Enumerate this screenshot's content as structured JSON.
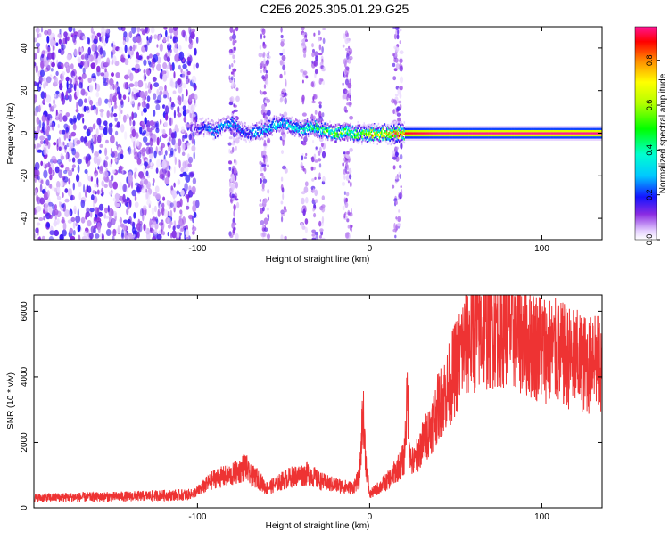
{
  "page_title": "C2E6.2025.305.01.29.G25",
  "chart_data": [
    {
      "type": "heatmap",
      "title": "C2E6.2025.305.01.29.G25",
      "xlabel": "Height of straight line (km)",
      "ylabel": "Frequency (Hz)",
      "xlim": [
        -195,
        135
      ],
      "ylim": [
        -50,
        50
      ],
      "xticks": [
        -100,
        0,
        100
      ],
      "xtick_labels": [
        "-100",
        "0",
        "100"
      ],
      "yticks": [
        -40,
        -20,
        0,
        20,
        40
      ],
      "ytick_labels": [
        "-40",
        "-20",
        "0",
        "20",
        "40"
      ],
      "colorbar": {
        "label": "Normalized spectral amplitude",
        "range": [
          0,
          0.95
        ],
        "ticks": [
          0,
          0.2,
          0.4,
          0.6,
          0.8
        ],
        "tick_labels": [
          "0.0",
          "0.2",
          "0.4",
          "0.6",
          "0.8"
        ]
      },
      "ridge": {
        "x": [
          -102,
          -95,
          -90,
          -85,
          -80,
          -75,
          -70,
          -65,
          -60,
          -55,
          -50,
          -45,
          -40,
          -35,
          -30,
          -25,
          -20,
          -15,
          -10,
          -5,
          0,
          5,
          10,
          15,
          20,
          40,
          60,
          80,
          100,
          120,
          135
        ],
        "freq": [
          2,
          3,
          1,
          4,
          5,
          1,
          0,
          1,
          2,
          4,
          5,
          3,
          2,
          3,
          2,
          1,
          0,
          1,
          0,
          0,
          0,
          0,
          0,
          0,
          0,
          0,
          0,
          0,
          0,
          0,
          0
        ],
        "amplitude": [
          0.15,
          0.25,
          0.3,
          0.28,
          0.3,
          0.25,
          0.25,
          0.3,
          0.32,
          0.35,
          0.35,
          0.38,
          0.4,
          0.45,
          0.5,
          0.55,
          0.6,
          0.55,
          0.5,
          0.6,
          0.75,
          0.8,
          0.85,
          0.9,
          0.9,
          0.95,
          0.95,
          0.95,
          0.95,
          0.95,
          0.95
        ]
      }
    },
    {
      "type": "line",
      "xlabel": "Height of straight line (km)",
      "ylabel": "SNR (10 * v/v)",
      "xlim": [
        -195,
        135
      ],
      "ylim": [
        0,
        6500
      ],
      "xticks": [
        -100,
        0,
        100
      ],
      "xtick_labels": [
        "-100",
        "0",
        "100"
      ],
      "yticks": [
        0,
        2000,
        4000,
        6000
      ],
      "ytick_labels": [
        "0",
        "2000",
        "4000",
        "6000"
      ],
      "color": "#ee3333",
      "series": [
        {
          "x": [
            -195,
            -180,
            -160,
            -140,
            -120,
            -105,
            -100,
            -95,
            -90,
            -85,
            -80,
            -75,
            -72,
            -70,
            -65,
            -60,
            -55,
            -50,
            -45,
            -40,
            -35,
            -30,
            -25,
            -20,
            -15,
            -10,
            -6,
            -5,
            -4,
            -2,
            0,
            5,
            10,
            15,
            20,
            22,
            23,
            24,
            26,
            30,
            35,
            40,
            45,
            50,
            55,
            60,
            65,
            70,
            75,
            80,
            85,
            90,
            95,
            100,
            105,
            110,
            115,
            120,
            125,
            128,
            130,
            132,
            135
          ],
          "y": [
            300,
            320,
            330,
            350,
            380,
            400,
            500,
            700,
            900,
            950,
            1000,
            1150,
            1300,
            1000,
            900,
            600,
            700,
            850,
            950,
            1000,
            1050,
            850,
            750,
            700,
            650,
            600,
            900,
            1800,
            3000,
            1300,
            400,
            600,
            800,
            1100,
            1500,
            3500,
            2200,
            1400,
            1400,
            1900,
            2400,
            3100,
            3600,
            4300,
            5000,
            5300,
            5400,
            5500,
            5600,
            5600,
            5400,
            5200,
            5000,
            4900,
            4800,
            4700,
            4600,
            4500,
            4400,
            4300,
            5000,
            4400,
            4300
          ]
        }
      ]
    }
  ]
}
